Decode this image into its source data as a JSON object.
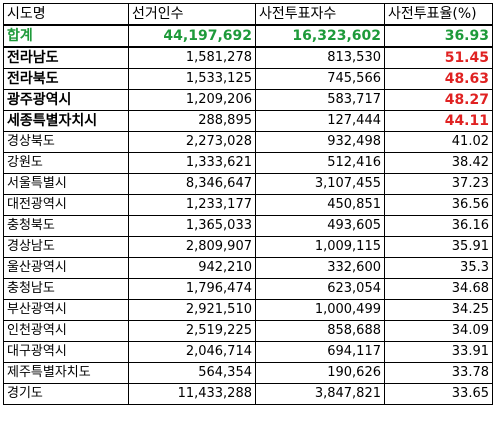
{
  "table": {
    "headers": [
      "시도명",
      "선거인수",
      "사전투표자수",
      "사전투표율(%)"
    ],
    "total": {
      "name": "합계",
      "voters": "44,197,692",
      "early": "16,323,602",
      "rate": "36.93"
    },
    "rows": [
      {
        "name": "전라남도",
        "voters": "1,581,278",
        "early": "813,530",
        "rate": "51.45",
        "highlight": true
      },
      {
        "name": "전라북도",
        "voters": "1,533,125",
        "early": "745,566",
        "rate": "48.63",
        "highlight": true
      },
      {
        "name": "광주광역시",
        "voters": "1,209,206",
        "early": "583,717",
        "rate": "48.27",
        "highlight": true
      },
      {
        "name": "세종특별자치시",
        "voters": "288,895",
        "early": "127,444",
        "rate": "44.11",
        "highlight": true
      },
      {
        "name": "경상북도",
        "voters": "2,273,028",
        "early": "932,498",
        "rate": "41.02",
        "highlight": false
      },
      {
        "name": "강원도",
        "voters": "1,333,621",
        "early": "512,416",
        "rate": "38.42",
        "highlight": false
      },
      {
        "name": "서울특별시",
        "voters": "8,346,647",
        "early": "3,107,455",
        "rate": "37.23",
        "highlight": false
      },
      {
        "name": "대전광역시",
        "voters": "1,233,177",
        "early": "450,851",
        "rate": "36.56",
        "highlight": false
      },
      {
        "name": "충청북도",
        "voters": "1,365,033",
        "early": "493,605",
        "rate": "36.16",
        "highlight": false
      },
      {
        "name": "경상남도",
        "voters": "2,809,907",
        "early": "1,009,115",
        "rate": "35.91",
        "highlight": false
      },
      {
        "name": "울산광역시",
        "voters": "942,210",
        "early": "332,600",
        "rate": "35.3",
        "highlight": false
      },
      {
        "name": "충청남도",
        "voters": "1,796,474",
        "early": "623,054",
        "rate": "34.68",
        "highlight": false
      },
      {
        "name": "부산광역시",
        "voters": "2,921,510",
        "early": "1,000,499",
        "rate": "34.25",
        "highlight": false
      },
      {
        "name": "인천광역시",
        "voters": "2,519,225",
        "early": "858,688",
        "rate": "34.09",
        "highlight": false
      },
      {
        "name": "대구광역시",
        "voters": "2,046,714",
        "early": "694,117",
        "rate": "33.91",
        "highlight": false
      },
      {
        "name": "제주특별자치도",
        "voters": "564,354",
        "early": "190,626",
        "rate": "33.78",
        "highlight": false
      },
      {
        "name": "경기도",
        "voters": "11,433,288",
        "early": "3,847,821",
        "rate": "33.65",
        "highlight": false
      }
    ]
  },
  "colors": {
    "total_text": "#1e9a3a",
    "highlight_rate": "#e02222"
  }
}
